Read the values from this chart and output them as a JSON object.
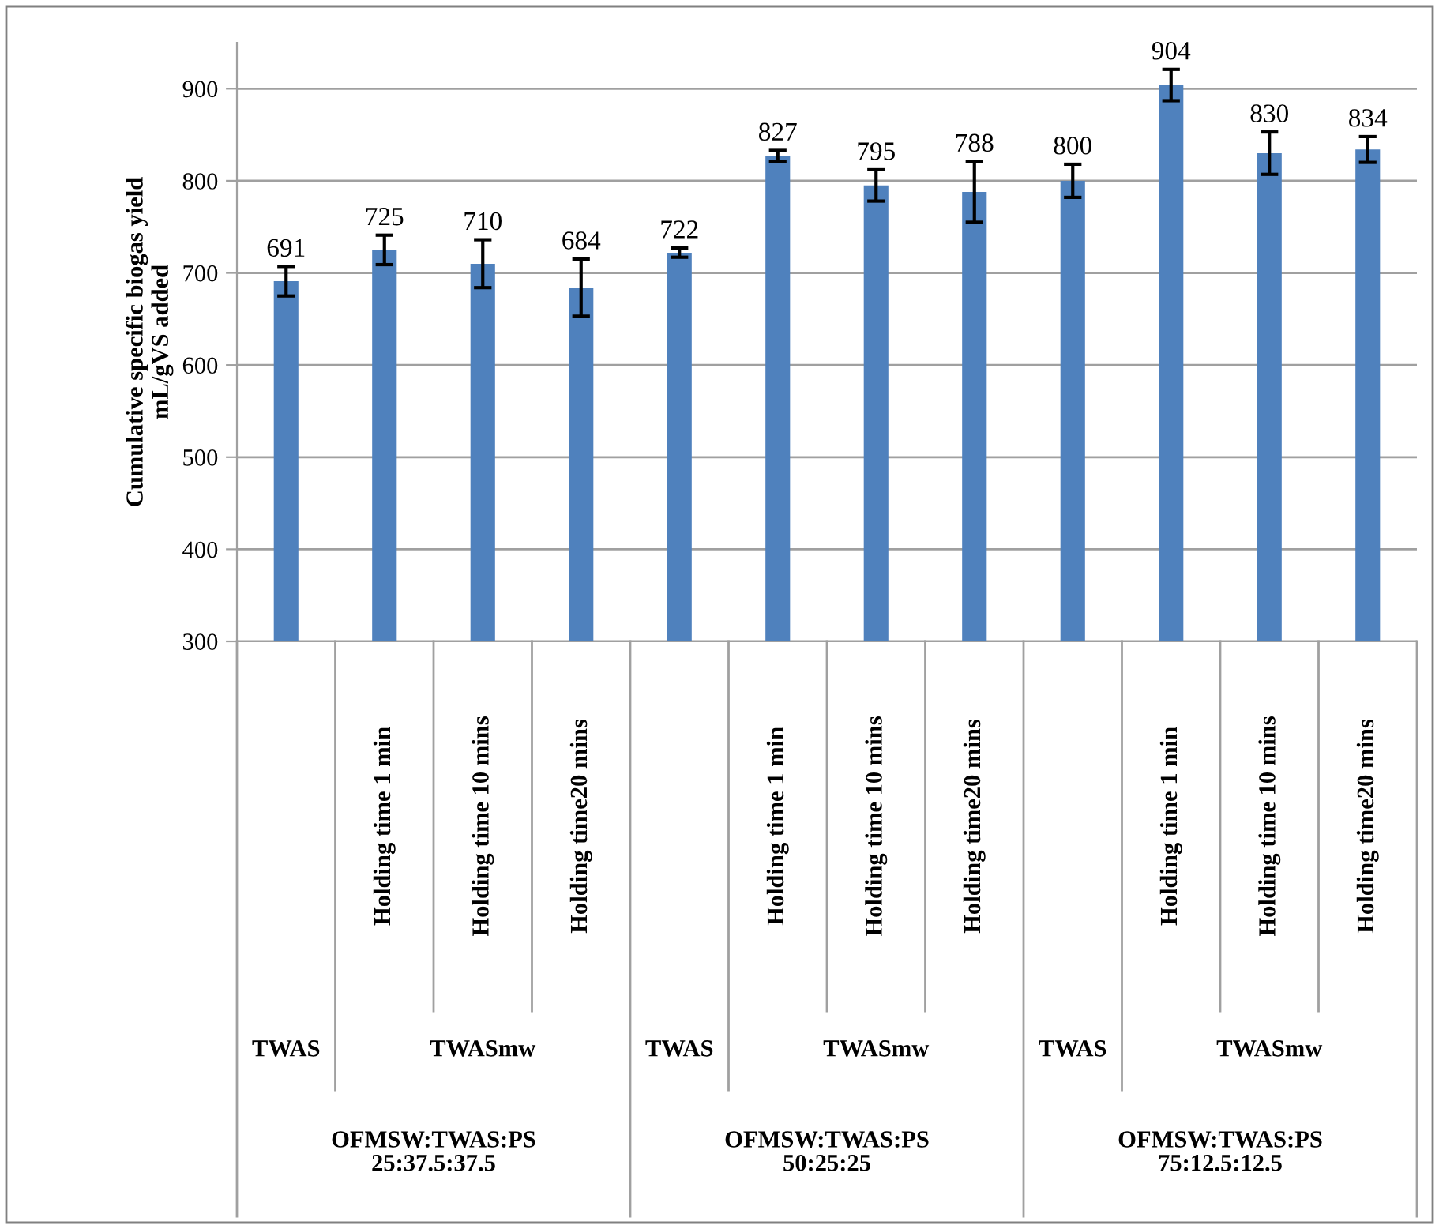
{
  "chart_data": {
    "type": "bar",
    "ylabel": "Cumulative specific biogas yield\nmL/gVS added",
    "categories": [
      null,
      "Holding time 1 min",
      "Holding time 10 mins",
      "Holding time20 mins",
      null,
      "Holding time 1 min",
      "Holding time 10 mins",
      "Holding time20 mins",
      null,
      "Holding time 1 min",
      "Holding time 10 mins",
      "Holding time20 mins"
    ],
    "series": [
      {
        "color": "#4f81bd",
        "values": [
          691,
          725,
          710,
          684,
          722,
          827,
          795,
          788,
          800,
          904,
          830,
          834
        ],
        "errors": [
          16,
          16,
          26,
          31,
          5,
          6,
          17,
          33,
          18,
          17,
          23,
          14
        ]
      }
    ],
    "ylim": [
      300,
      950
    ],
    "yticks": [
      300,
      400,
      500,
      600,
      700,
      800,
      900
    ],
    "grid": "y",
    "data_labels": true,
    "legend": false,
    "annotations": [
      "TWAS",
      "TWASmw",
      "TWAS",
      "TWASmw",
      "TWAS",
      "TWASmw",
      "OFMSW:TWAS:PS\n25:37.5:37.5",
      "OFMSW:TWAS:PS\n50:25:25",
      "OFMSW:TWAS:PS\n75:12.5:12.5"
    ]
  }
}
